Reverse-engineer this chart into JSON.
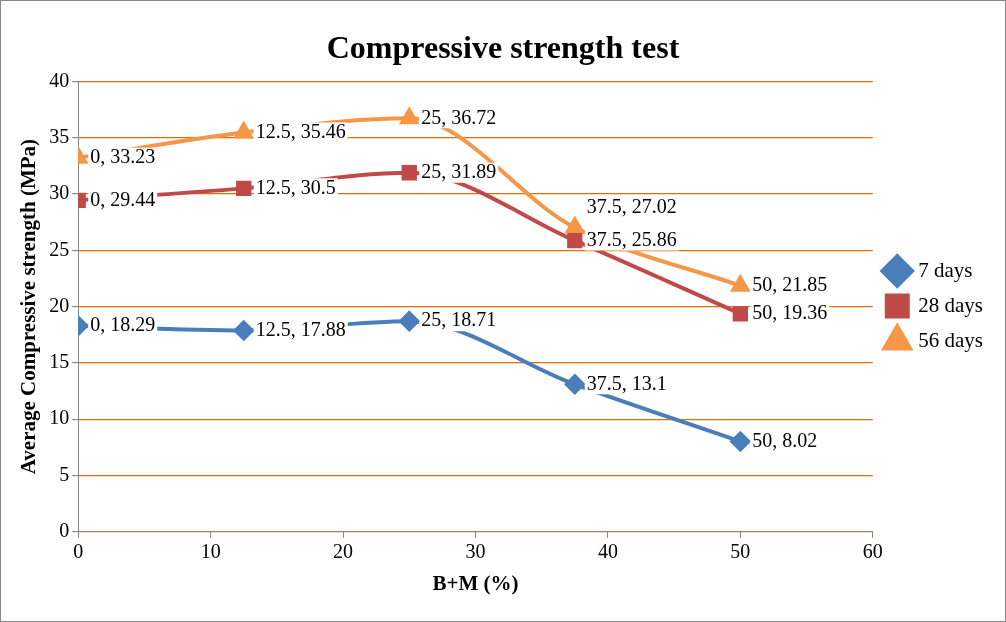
{
  "chart_data": {
    "type": "line",
    "title": "Compressive strength test",
    "xlabel": "B+M (%)",
    "ylabel": "Average Compressive strength (MPa)",
    "x": [
      0,
      12.5,
      25,
      37.5,
      50
    ],
    "series": [
      {
        "name": "7 days",
        "color": "#4a7ebb",
        "marker": "diamond",
        "values": [
          18.29,
          17.88,
          18.71,
          13.1,
          8.02
        ],
        "value_labels": [
          "0, 18.29",
          "12.5, 17.88",
          "25, 18.71",
          "37.5, 13.1",
          "50, 8.02"
        ]
      },
      {
        "name": "28 days",
        "color": "#be4b48",
        "marker": "square",
        "values": [
          29.44,
          30.5,
          31.89,
          25.86,
          19.36
        ],
        "value_labels": [
          "0, 29.44",
          "12.5, 30.5",
          "25, 31.89",
          "37.5, 25.86",
          "50, 19.36"
        ]
      },
      {
        "name": "56 days",
        "color": "#f79646",
        "marker": "triangle",
        "values": [
          33.23,
          35.46,
          36.72,
          27.02,
          21.85
        ],
        "value_labels": [
          "0, 33.23",
          "12.5, 35.46",
          "25, 36.72",
          "37.5, 27.02",
          "50, 21.85"
        ]
      }
    ],
    "xlim": [
      0,
      60
    ],
    "xticks": [
      0,
      10,
      20,
      30,
      40,
      50,
      60
    ],
    "ylim": [
      0,
      40
    ],
    "yticks": [
      0,
      5,
      10,
      15,
      20,
      25,
      30,
      35,
      40
    ],
    "grid": "y",
    "legend": "right"
  }
}
